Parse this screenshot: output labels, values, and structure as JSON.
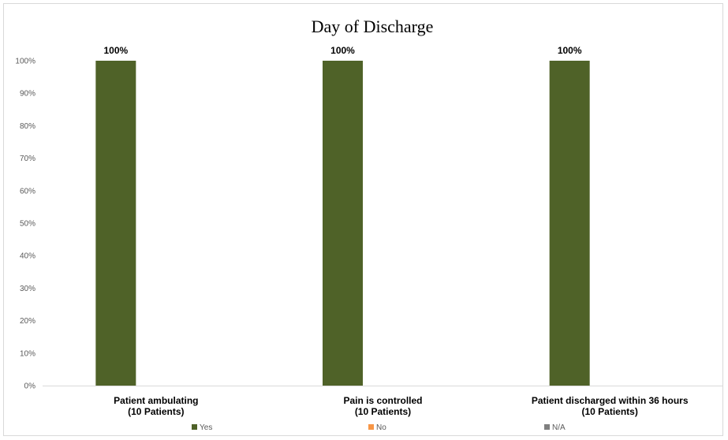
{
  "chart_data": {
    "type": "bar",
    "title": "Day of Discharge",
    "xlabel": "",
    "ylabel": "",
    "ylim": [
      0,
      100
    ],
    "yticks": [
      "0%",
      "10%",
      "20%",
      "30%",
      "40%",
      "50%",
      "60%",
      "70%",
      "80%",
      "90%",
      "100%"
    ],
    "categories": [
      [
        "Patient ambulating",
        "(10 Patients)"
      ],
      [
        "Pain is controlled",
        "(10 Patients)"
      ],
      [
        "Patient discharged within 36 hours",
        "(10 Patients)"
      ]
    ],
    "series": [
      {
        "name": "Yes",
        "color": "#4f6228",
        "values": [
          100,
          100,
          100
        ],
        "labels": [
          "100%",
          "100%",
          "100%"
        ]
      },
      {
        "name": "No",
        "color": "#f79646",
        "values": [
          0,
          0,
          0
        ],
        "labels": []
      },
      {
        "name": "N/A",
        "color": "#7f7f7f",
        "values": [
          0,
          0,
          0
        ],
        "labels": []
      }
    ],
    "grid": false,
    "legend_position": "bottom"
  }
}
